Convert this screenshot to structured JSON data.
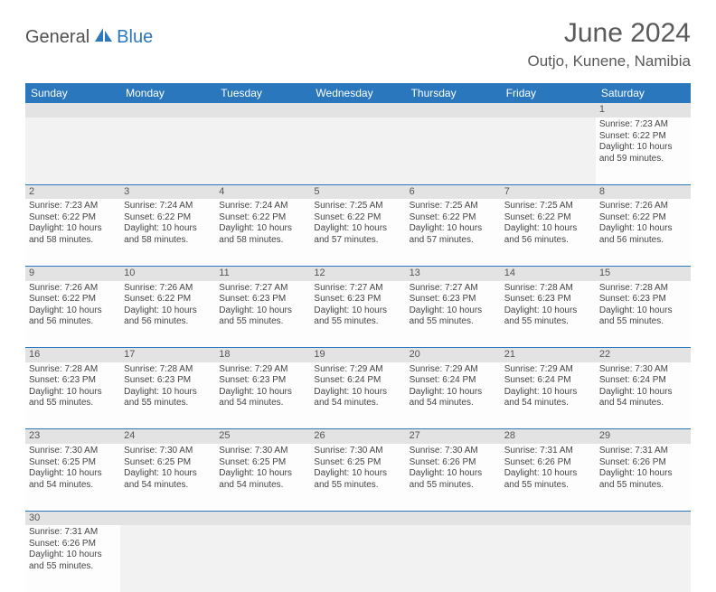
{
  "brand": {
    "text1": "General",
    "text2": "Blue",
    "color1": "#525252",
    "color2": "#2a77bd"
  },
  "title": "June 2024",
  "location": "Outjo, Kunene, Namibia",
  "header_bg": "#2a77bd",
  "daynum_bg": "#e3e3e3",
  "days": [
    "Sunday",
    "Monday",
    "Tuesday",
    "Wednesday",
    "Thursday",
    "Friday",
    "Saturday"
  ],
  "weeks": [
    [
      null,
      null,
      null,
      null,
      null,
      null,
      {
        "n": "1",
        "sr": "7:23 AM",
        "ss": "6:22 PM",
        "dl": "10 hours and 59 minutes."
      }
    ],
    [
      {
        "n": "2",
        "sr": "7:23 AM",
        "ss": "6:22 PM",
        "dl": "10 hours and 58 minutes."
      },
      {
        "n": "3",
        "sr": "7:24 AM",
        "ss": "6:22 PM",
        "dl": "10 hours and 58 minutes."
      },
      {
        "n": "4",
        "sr": "7:24 AM",
        "ss": "6:22 PM",
        "dl": "10 hours and 58 minutes."
      },
      {
        "n": "5",
        "sr": "7:25 AM",
        "ss": "6:22 PM",
        "dl": "10 hours and 57 minutes."
      },
      {
        "n": "6",
        "sr": "7:25 AM",
        "ss": "6:22 PM",
        "dl": "10 hours and 57 minutes."
      },
      {
        "n": "7",
        "sr": "7:25 AM",
        "ss": "6:22 PM",
        "dl": "10 hours and 56 minutes."
      },
      {
        "n": "8",
        "sr": "7:26 AM",
        "ss": "6:22 PM",
        "dl": "10 hours and 56 minutes."
      }
    ],
    [
      {
        "n": "9",
        "sr": "7:26 AM",
        "ss": "6:22 PM",
        "dl": "10 hours and 56 minutes."
      },
      {
        "n": "10",
        "sr": "7:26 AM",
        "ss": "6:22 PM",
        "dl": "10 hours and 56 minutes."
      },
      {
        "n": "11",
        "sr": "7:27 AM",
        "ss": "6:23 PM",
        "dl": "10 hours and 55 minutes."
      },
      {
        "n": "12",
        "sr": "7:27 AM",
        "ss": "6:23 PM",
        "dl": "10 hours and 55 minutes."
      },
      {
        "n": "13",
        "sr": "7:27 AM",
        "ss": "6:23 PM",
        "dl": "10 hours and 55 minutes."
      },
      {
        "n": "14",
        "sr": "7:28 AM",
        "ss": "6:23 PM",
        "dl": "10 hours and 55 minutes."
      },
      {
        "n": "15",
        "sr": "7:28 AM",
        "ss": "6:23 PM",
        "dl": "10 hours and 55 minutes."
      }
    ],
    [
      {
        "n": "16",
        "sr": "7:28 AM",
        "ss": "6:23 PM",
        "dl": "10 hours and 55 minutes."
      },
      {
        "n": "17",
        "sr": "7:28 AM",
        "ss": "6:23 PM",
        "dl": "10 hours and 55 minutes."
      },
      {
        "n": "18",
        "sr": "7:29 AM",
        "ss": "6:23 PM",
        "dl": "10 hours and 54 minutes."
      },
      {
        "n": "19",
        "sr": "7:29 AM",
        "ss": "6:24 PM",
        "dl": "10 hours and 54 minutes."
      },
      {
        "n": "20",
        "sr": "7:29 AM",
        "ss": "6:24 PM",
        "dl": "10 hours and 54 minutes."
      },
      {
        "n": "21",
        "sr": "7:29 AM",
        "ss": "6:24 PM",
        "dl": "10 hours and 54 minutes."
      },
      {
        "n": "22",
        "sr": "7:30 AM",
        "ss": "6:24 PM",
        "dl": "10 hours and 54 minutes."
      }
    ],
    [
      {
        "n": "23",
        "sr": "7:30 AM",
        "ss": "6:25 PM",
        "dl": "10 hours and 54 minutes."
      },
      {
        "n": "24",
        "sr": "7:30 AM",
        "ss": "6:25 PM",
        "dl": "10 hours and 54 minutes."
      },
      {
        "n": "25",
        "sr": "7:30 AM",
        "ss": "6:25 PM",
        "dl": "10 hours and 54 minutes."
      },
      {
        "n": "26",
        "sr": "7:30 AM",
        "ss": "6:25 PM",
        "dl": "10 hours and 55 minutes."
      },
      {
        "n": "27",
        "sr": "7:30 AM",
        "ss": "6:26 PM",
        "dl": "10 hours and 55 minutes."
      },
      {
        "n": "28",
        "sr": "7:31 AM",
        "ss": "6:26 PM",
        "dl": "10 hours and 55 minutes."
      },
      {
        "n": "29",
        "sr": "7:31 AM",
        "ss": "6:26 PM",
        "dl": "10 hours and 55 minutes."
      }
    ],
    [
      {
        "n": "30",
        "sr": "7:31 AM",
        "ss": "6:26 PM",
        "dl": "10 hours and 55 minutes."
      },
      null,
      null,
      null,
      null,
      null,
      null
    ]
  ],
  "labels": {
    "sunrise": "Sunrise:",
    "sunset": "Sunset:",
    "daylight": "Daylight:"
  }
}
